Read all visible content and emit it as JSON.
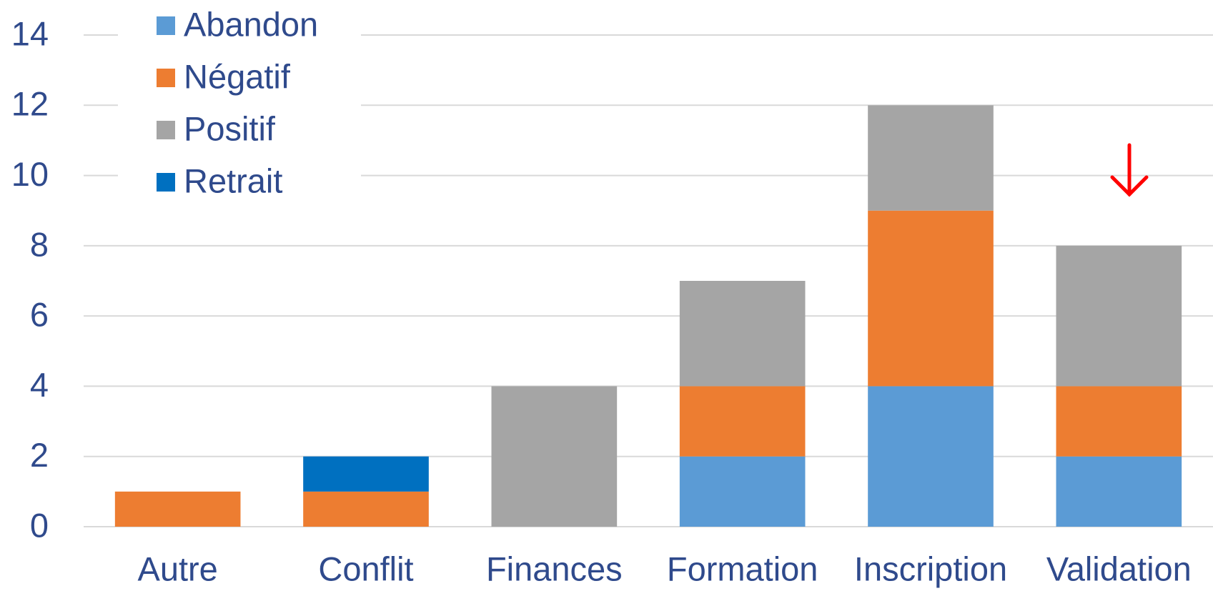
{
  "chart_data": {
    "type": "stacked_bar",
    "categories": [
      "Autre",
      "Conflit",
      "Finances",
      "Formation",
      "Inscription",
      "Validation"
    ],
    "series": [
      {
        "name": "Abandon",
        "color": "#5b9bd5",
        "values": [
          0,
          0,
          0,
          2,
          4,
          2
        ]
      },
      {
        "name": "Négatif",
        "color": "#ed7d31",
        "values": [
          1,
          1,
          0,
          2,
          5,
          2
        ]
      },
      {
        "name": "Positif",
        "color": "#a5a5a5",
        "values": [
          0,
          0,
          4,
          3,
          3,
          4
        ]
      },
      {
        "name": "Retrait",
        "color": "#0070c0",
        "values": [
          0,
          1,
          0,
          0,
          0,
          0
        ]
      }
    ],
    "ylim": [
      0,
      14
    ],
    "yticks": [
      0,
      2,
      4,
      6,
      8,
      10,
      12,
      14
    ],
    "grid": true,
    "legend": "upper left"
  }
}
